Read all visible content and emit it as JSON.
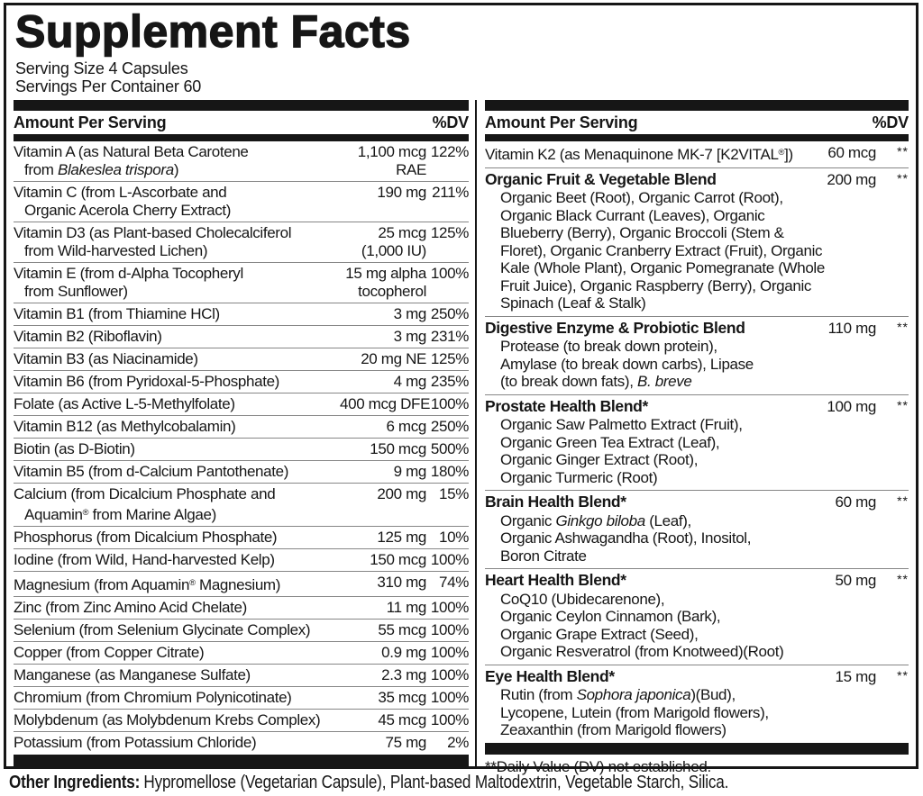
{
  "colors": {
    "ink": "#161616",
    "separator": "#868686",
    "background": "#ffffff"
  },
  "header": {
    "title": "Supplement Facts",
    "serving_size": "Serving Size 4 Capsules",
    "servings_per_container": "Servings Per Container 60"
  },
  "columns": {
    "amount_header": "Amount Per Serving",
    "dv_header": "%DV"
  },
  "left_rows": [
    {
      "name": [
        "Vitamin A (as Natural Beta Carotene",
        "from {i}Blakeslea trispora{/i})"
      ],
      "amount": [
        "1,100 mcg",
        "RAE"
      ],
      "dv": "122%"
    },
    {
      "name": [
        "Vitamin C (from L-Ascorbate and",
        "Organic Acerola Cherry Extract)"
      ],
      "amount": "190 mg",
      "dv": "211%"
    },
    {
      "name": [
        "Vitamin D3 (as Plant-based Cholecalciferol",
        "from Wild-harvested Lichen)"
      ],
      "amount": [
        "25 mcg",
        "(1,000 IU)"
      ],
      "dv": "125%"
    },
    {
      "name": [
        "Vitamin E (from d-Alpha Tocopheryl",
        "from Sunflower)"
      ],
      "amount": [
        "15 mg alpha",
        "tocopherol"
      ],
      "dv": "100%"
    },
    {
      "name": "Vitamin B1 (from Thiamine HCl)",
      "amount": "3 mg",
      "dv": "250%"
    },
    {
      "name": "Vitamin B2 (Riboflavin)",
      "amount": "3 mg",
      "dv": "231%"
    },
    {
      "name": "Vitamin B3 (as Niacinamide)",
      "amount": "20 mg NE",
      "dv": "125%"
    },
    {
      "name": "Vitamin B6 (from Pyridoxal-5-Phosphate)",
      "amount": "4 mg",
      "dv": "235%"
    },
    {
      "name": "Folate (as Active L-5-Methylfolate)",
      "amount": "400 mcg DFE",
      "dv": "100%"
    },
    {
      "name": "Vitamin B12 (as Methylcobalamin)",
      "amount": "6 mcg",
      "dv": "250%"
    },
    {
      "name": "Biotin (as D-Biotin)",
      "amount": "150 mcg",
      "dv": "500%"
    },
    {
      "name": "Vitamin B5 (from d-Calcium Pantothenate)",
      "amount": "9 mg",
      "dv": "180%"
    },
    {
      "name": [
        "Calcium (from Dicalcium Phosphate and",
        "Aquamin® from Marine Algae)"
      ],
      "amount": "200 mg",
      "dv": "15%"
    },
    {
      "name": "Phosphorus (from Dicalcium Phosphate)",
      "amount": "125 mg",
      "dv": "10%"
    },
    {
      "name": "Iodine (from Wild, Hand-harvested Kelp)",
      "amount": "150 mcg",
      "dv": "100%"
    },
    {
      "name": "Magnesium (from Aquamin® Magnesium)",
      "amount": "310 mg",
      "dv": "74%"
    },
    {
      "name": "Zinc (from Zinc Amino Acid Chelate)",
      "amount": "11 mg",
      "dv": "100%"
    },
    {
      "name": "Selenium (from Selenium Glycinate Complex)",
      "amount": "55 mcg",
      "dv": "100%"
    },
    {
      "name": "Copper (from Copper Citrate)",
      "amount": "0.9 mg",
      "dv": "100%"
    },
    {
      "name": "Manganese (as Manganese Sulfate)",
      "amount": "2.3 mg",
      "dv": "100%"
    },
    {
      "name": "Chromium (from Chromium Polynicotinate)",
      "amount": "35 mcg",
      "dv": "100%"
    },
    {
      "name": "Molybdenum (as Molybdenum Krebs Complex)",
      "amount": "45 mcg",
      "dv": "100%"
    },
    {
      "name": "Potassium (from Potassium Chloride)",
      "amount": "75 mg",
      "dv": "2%"
    }
  ],
  "right_rows": [
    {
      "name": "Vitamin K2 (as Menaquinone MK-7 [K2VITAL®])",
      "amount": "60 mcg",
      "dv": "**"
    },
    {
      "name": "Organic Fruit & Vegetable Blend",
      "amount": "200 mg",
      "dv": "**",
      "ingredients": [
        "Organic Beet (Root), Organic Carrot (Root),",
        "Organic Black Currant (Leaves), Organic",
        "Blueberry (Berry), Organic Broccoli (Stem &",
        "Floret), Organic Cranberry Extract (Fruit), Organic",
        "Kale (Whole Plant), Organic Pomegranate (Whole",
        "Fruit Juice), Organic Raspberry (Berry), Organic",
        "Spinach (Leaf & Stalk)"
      ]
    },
    {
      "name": "Digestive Enzyme & Probiotic Blend",
      "amount": "110 mg",
      "dv": "**",
      "ingredients": [
        "Protease (to break down protein),",
        "Amylase (to break down carbs), Lipase",
        "(to break down fats), {i}B. breve{/i}"
      ]
    },
    {
      "name": "Prostate Health Blend*",
      "amount": "100 mg",
      "dv": "**",
      "ingredients": [
        "Organic Saw Palmetto Extract (Fruit),",
        "Organic Green Tea Extract (Leaf),",
        "Organic Ginger Extract (Root),",
        "Organic Turmeric (Root)"
      ]
    },
    {
      "name": "Brain Health Blend*",
      "amount": "60 mg",
      "dv": "**",
      "ingredients": [
        "Organic {i}Ginkgo biloba{/i} (Leaf),",
        "Organic Ashwagandha (Root), Inositol,",
        "Boron Citrate"
      ]
    },
    {
      "name": "Heart Health Blend*",
      "amount": "50 mg",
      "dv": "**",
      "ingredients": [
        "CoQ10 (Ubidecarenone),",
        "Organic Ceylon Cinnamon (Bark),",
        "Organic Grape Extract (Seed),",
        "Organic Resveratrol (from Knotweed)(Root)"
      ]
    },
    {
      "name": "Eye Health Blend*",
      "amount": "15 mg",
      "dv": "**",
      "ingredients": [
        "Rutin (from {i}Sophora japonica{/i})(Bud),",
        "Lycopene, Lutein (from Marigold flowers),",
        "Zeaxanthin (from Marigold flowers)"
      ]
    }
  ],
  "footnote": "**Daily Value (DV) not established.",
  "other_ingredients": {
    "label": "Other Ingredients:",
    "text": "Hypromellose (Vegetarian Capsule), Plant-based Maltodextrin, Vegetable Starch, Silica."
  }
}
